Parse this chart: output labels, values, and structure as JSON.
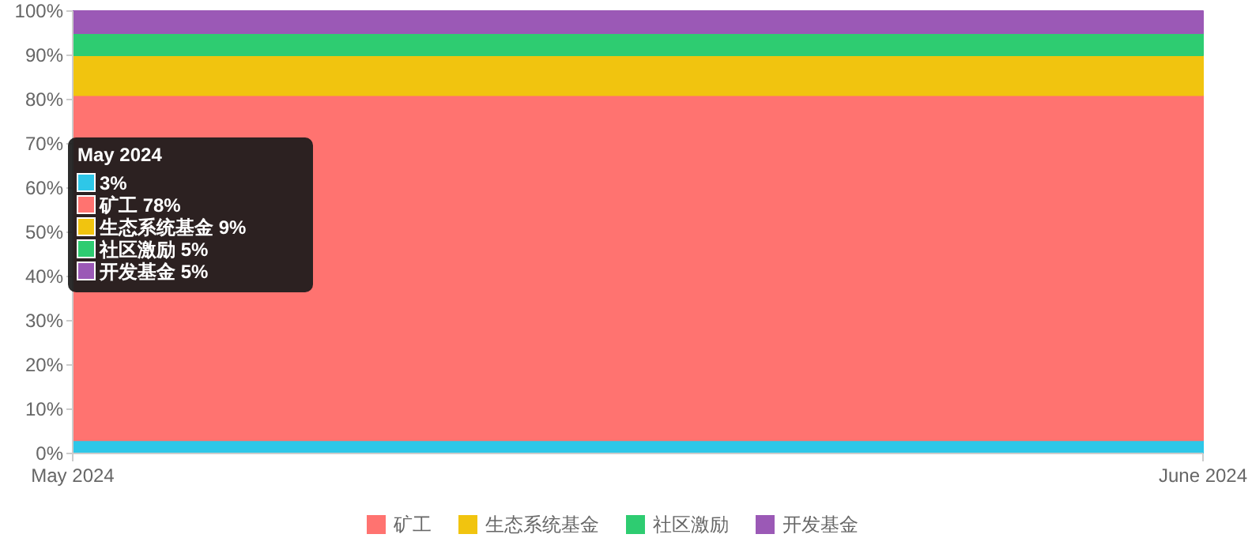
{
  "chart_data": {
    "type": "area",
    "stacked": true,
    "x": [
      "2024-05",
      "2024-06"
    ],
    "xlim": [
      "2024-05",
      "2024-06"
    ],
    "xticks": [
      {
        "value": "2024-05",
        "label": "May 2024"
      },
      {
        "value": "2024-06",
        "label": "June 2024"
      }
    ],
    "ylim": [
      0,
      100
    ],
    "yticks": [
      {
        "value": 0,
        "label": "0%"
      },
      {
        "value": 10,
        "label": "10%"
      },
      {
        "value": 20,
        "label": "20%"
      },
      {
        "value": 30,
        "label": "30%"
      },
      {
        "value": 40,
        "label": "40%"
      },
      {
        "value": 50,
        "label": "50%"
      },
      {
        "value": 60,
        "label": "60%"
      },
      {
        "value": 70,
        "label": "70%"
      },
      {
        "value": 80,
        "label": "80%"
      },
      {
        "value": 90,
        "label": "90%"
      },
      {
        "value": 100,
        "label": "100%"
      }
    ],
    "legend": "bottom",
    "series": [
      {
        "color": "#2ec7e8",
        "values": [
          3,
          3
        ]
      },
      {
        "name": "矿工",
        "color": "#ff7370",
        "values": [
          78,
          78
        ]
      },
      {
        "name": "生态系统基金",
        "color": "#f1c40f",
        "values": [
          9,
          9
        ]
      },
      {
        "name": "社区激励",
        "color": "#2ecc71",
        "values": [
          5,
          5
        ]
      },
      {
        "name": "开发基金",
        "color": "#9b59b6",
        "values": [
          5,
          5
        ]
      }
    ],
    "annotations": [
      "May 2024",
      "3%",
      "矿工 78%",
      "生态系统基金 9%",
      "社区激励 5%",
      "开发基金 5%"
    ]
  }
}
